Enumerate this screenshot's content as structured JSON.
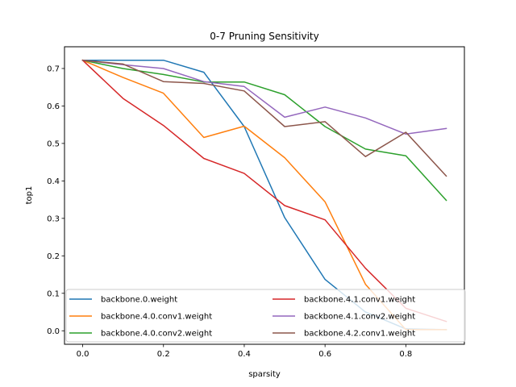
{
  "chart_data": {
    "type": "line",
    "title": "0-7 Pruning Sensitivity",
    "xlabel": "sparsity",
    "ylabel": "top1",
    "xlim": [
      -0.045,
      0.945
    ],
    "ylim": [
      -0.036,
      0.758
    ],
    "xticks": [
      0.0,
      0.2,
      0.4,
      0.6,
      0.8
    ],
    "xtick_labels": [
      "0.0",
      "0.2",
      "0.4",
      "0.6",
      "0.8"
    ],
    "yticks": [
      0.0,
      0.1,
      0.2,
      0.3,
      0.4,
      0.5,
      0.6,
      0.7
    ],
    "ytick_labels": [
      "0.0",
      "0.1",
      "0.2",
      "0.3",
      "0.4",
      "0.5",
      "0.6",
      "0.7"
    ],
    "grid": false,
    "legend_position": "lower center",
    "x": [
      0.0,
      0.1,
      0.2,
      0.3,
      0.4,
      0.5,
      0.6,
      0.7,
      0.8,
      0.9
    ],
    "series": [
      {
        "name": "backbone.0.weight",
        "color": "#1f77b4",
        "values": [
          0.722,
          0.722,
          0.722,
          0.69,
          0.545,
          0.302,
          0.137,
          0.05,
          0.005,
          0.003
        ]
      },
      {
        "name": "backbone.4.0.conv1.weight",
        "color": "#ff7f0e",
        "values": [
          0.722,
          0.676,
          0.634,
          0.516,
          0.546,
          0.462,
          0.344,
          0.124,
          0.003,
          0.003
        ]
      },
      {
        "name": "backbone.4.0.conv2.weight",
        "color": "#2ca02c",
        "values": [
          0.722,
          0.7,
          0.684,
          0.664,
          0.664,
          0.63,
          0.545,
          0.485,
          0.467,
          0.348
        ]
      },
      {
        "name": "backbone.4.1.conv1.weight",
        "color": "#d62728",
        "values": [
          0.722,
          0.62,
          0.548,
          0.46,
          0.42,
          0.334,
          0.296,
          0.167,
          0.06,
          0.025
        ]
      },
      {
        "name": "backbone.4.1.conv2.weight",
        "color": "#9467bd",
        "values": [
          0.722,
          0.71,
          0.7,
          0.665,
          0.652,
          0.57,
          0.597,
          0.568,
          0.525,
          0.54
        ]
      },
      {
        "name": "backbone.4.2.conv1.weight",
        "color": "#8c564b",
        "values": [
          0.722,
          0.712,
          0.665,
          0.66,
          0.64,
          0.545,
          0.558,
          0.465,
          0.53,
          0.413
        ]
      }
    ]
  }
}
